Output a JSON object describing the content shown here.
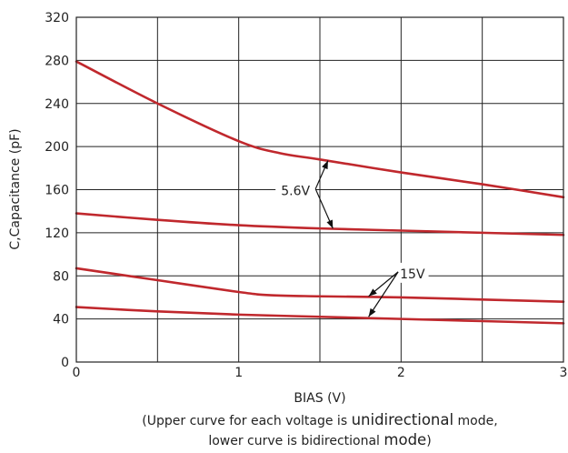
{
  "chart_data": {
    "type": "line",
    "xlabel": "BIAS (V)",
    "ylabel": "C,Capacitance (pF)",
    "xlim": [
      0,
      3
    ],
    "ylim": [
      0,
      320
    ],
    "x_ticks": [
      "0",
      "1",
      "2",
      "3"
    ],
    "y_ticks": [
      "0",
      "40",
      "80",
      "120",
      "160",
      "200",
      "240",
      "280",
      "320"
    ],
    "grid": true,
    "line_color": "#c0282d",
    "series": [
      {
        "x": [
          0,
          0.5,
          1.0,
          1.25,
          1.5,
          2.0,
          2.5,
          3.0
        ],
        "y": [
          279,
          240,
          205,
          194,
          188,
          176,
          165,
          153
        ]
      },
      {
        "x": [
          0,
          0.5,
          1.0,
          1.5,
          2.0,
          2.5,
          3.0
        ],
        "y": [
          138,
          132,
          127,
          124,
          122,
          120,
          118
        ]
      },
      {
        "x": [
          0,
          0.5,
          1.0,
          1.2,
          1.5,
          2.0,
          2.5,
          3.0
        ],
        "y": [
          87,
          76,
          65,
          62,
          61,
          60,
          58,
          56
        ]
      },
      {
        "x": [
          0,
          0.5,
          1.0,
          1.5,
          2.0,
          2.5,
          3.0
        ],
        "y": [
          51,
          47,
          44,
          42,
          40,
          38,
          36
        ]
      }
    ],
    "annotations": [
      {
        "text": "5.6V",
        "label_at": [
          1.35,
          159
        ],
        "arrows_to": [
          [
            1.55,
            187
          ],
          [
            1.58,
            124
          ]
        ]
      },
      {
        "text": "15V",
        "label_at": [
          2.07,
          82
        ],
        "arrows_to": [
          [
            1.8,
            61
          ],
          [
            1.8,
            42
          ]
        ]
      }
    ],
    "note_lines": [
      [
        {
          "text": "(Upper curve for each voltage is ",
          "size": "small"
        },
        {
          "text": "unidirectional",
          "size": "large"
        },
        {
          "text": " mode,",
          "size": "small"
        }
      ],
      [
        {
          "text": "lower curve is bidirectional ",
          "size": "small"
        },
        {
          "text": "mode",
          "size": "large"
        },
        {
          "text": ")",
          "size": "small"
        }
      ]
    ]
  }
}
